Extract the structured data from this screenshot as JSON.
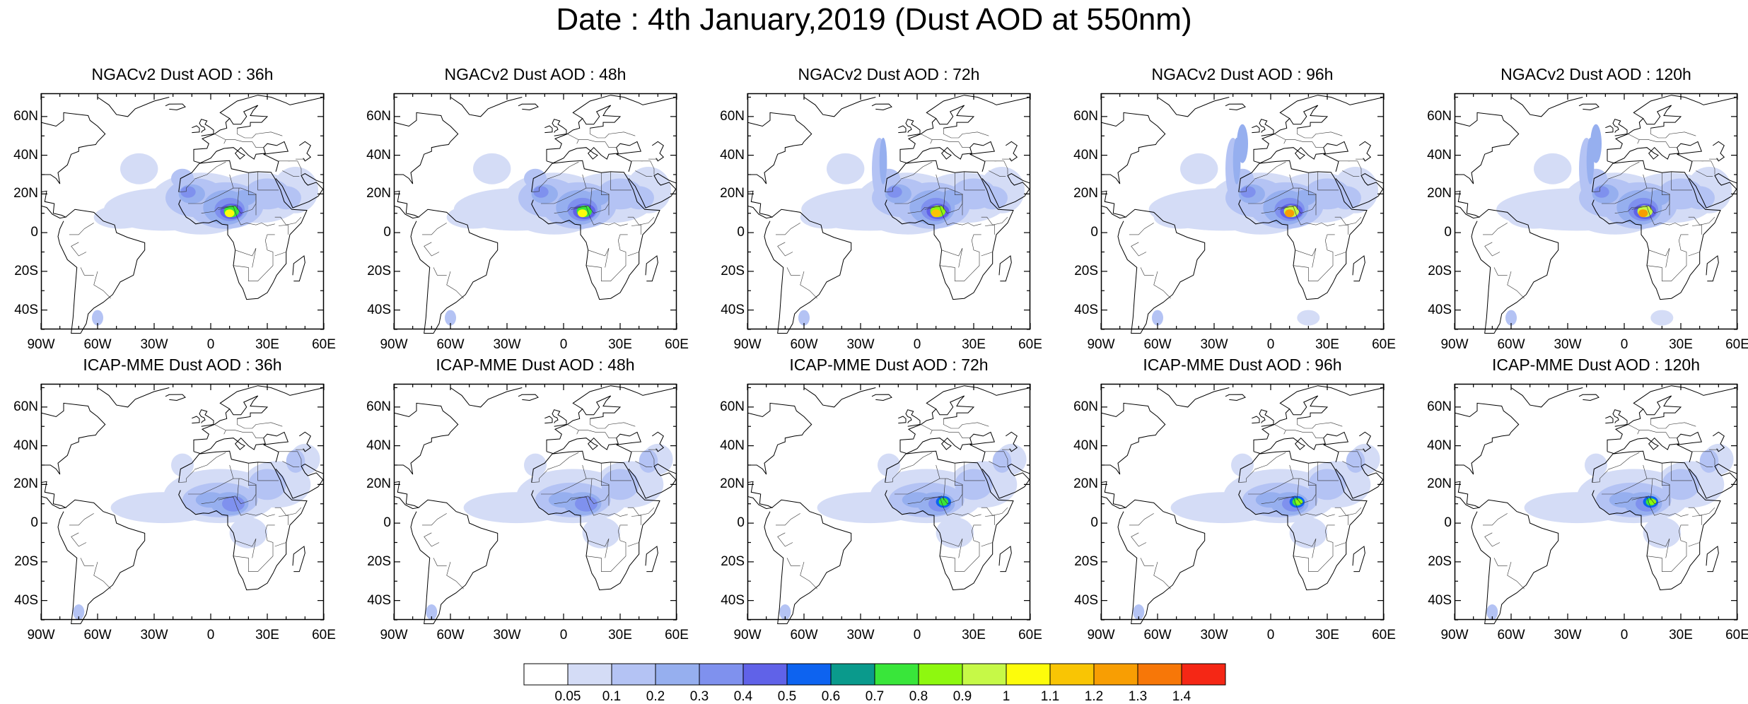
{
  "title": "Date : 4th January,2019 (Dust AOD at 550nm)",
  "lat_labels": [
    "60N",
    "40N",
    "20N",
    "0",
    "20S",
    "40S"
  ],
  "lon_labels": [
    "90W",
    "60W",
    "30W",
    "0",
    "30E",
    "60E"
  ],
  "panels": [
    {
      "label": "NGACv2 Dust AOD : 36h",
      "model": "NGACv2",
      "lead": 36
    },
    {
      "label": "NGACv2 Dust AOD : 48h",
      "model": "NGACv2",
      "lead": 48
    },
    {
      "label": "NGACv2 Dust AOD : 72h",
      "model": "NGACv2",
      "lead": 72
    },
    {
      "label": "NGACv2 Dust AOD : 96h",
      "model": "NGACv2",
      "lead": 96
    },
    {
      "label": "NGACv2 Dust AOD : 120h",
      "model": "NGACv2",
      "lead": 120
    },
    {
      "label": "ICAP-MME Dust AOD : 36h",
      "model": "ICAP-MME",
      "lead": 36
    },
    {
      "label": "ICAP-MME Dust AOD : 48h",
      "model": "ICAP-MME",
      "lead": 48
    },
    {
      "label": "ICAP-MME Dust AOD : 72h",
      "model": "ICAP-MME",
      "lead": 72
    },
    {
      "label": "ICAP-MME Dust AOD : 96h",
      "model": "ICAP-MME",
      "lead": 96
    },
    {
      "label": "ICAP-MME Dust AOD : 120h",
      "model": "ICAP-MME",
      "lead": 120
    }
  ],
  "colorbar": {
    "labels": [
      "0.05",
      "0.1",
      "0.2",
      "0.3",
      "0.4",
      "0.5",
      "0.6",
      "0.7",
      "0.8",
      "0.9",
      "1",
      "1.1",
      "1.2",
      "1.3",
      "1.4"
    ],
    "colors": [
      "#ffffff",
      "#d4dcf6",
      "#b4c3f4",
      "#96afef",
      "#7f91ee",
      "#6062e8",
      "#0d63f0",
      "#0a9a8c",
      "#39e63a",
      "#8ef80f",
      "#c6f947",
      "#fdfc0b",
      "#f9c504",
      "#f89e03",
      "#f77708",
      "#f52715"
    ]
  }
}
